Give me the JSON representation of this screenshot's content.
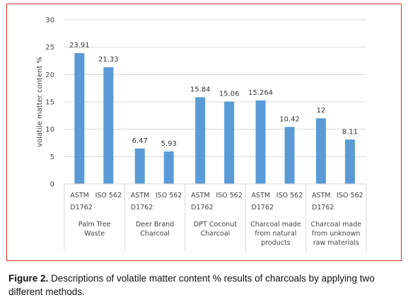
{
  "chart_data": {
    "type": "bar",
    "ylabel": "volatile matter content %",
    "ylim": [
      0,
      30
    ],
    "yticks": [
      "0",
      "5",
      "10",
      "15",
      "20",
      "25",
      "30"
    ],
    "grid": true,
    "bar_color": "#5b9bd5",
    "groups": [
      {
        "label": [
          "Palm Tree",
          "Waste"
        ],
        "bars": [
          {
            "method": [
              "ASTM",
              "D1762"
            ],
            "value": 23.91,
            "label": "23.91"
          },
          {
            "method": [
              "ISO 562"
            ],
            "value": 21.33,
            "label": "21.33"
          }
        ]
      },
      {
        "label": [
          "Deer Brand",
          "Charcoal"
        ],
        "bars": [
          {
            "method": [
              "ASTM",
              "D1762"
            ],
            "value": 6.47,
            "label": "6.47"
          },
          {
            "method": [
              "ISO 562"
            ],
            "value": 5.93,
            "label": "5.93"
          }
        ]
      },
      {
        "label": [
          "DPT Coconut",
          "Charcoal"
        ],
        "bars": [
          {
            "method": [
              "ASTM",
              "D1762"
            ],
            "value": 15.84,
            "label": "15.84"
          },
          {
            "method": [
              "ISO 562"
            ],
            "value": 15.06,
            "label": "15.06"
          }
        ]
      },
      {
        "label": [
          "Charcoal made",
          "from natural",
          "products"
        ],
        "bars": [
          {
            "method": [
              "ASTM",
              "D1762"
            ],
            "value": 15.264,
            "label": "15.264"
          },
          {
            "method": [
              "ISO 562"
            ],
            "value": 10.42,
            "label": "10.42"
          }
        ]
      },
      {
        "label": [
          "Charcoal made",
          "from unknown",
          "raw materials"
        ],
        "bars": [
          {
            "method": [
              "ASTM",
              "D1762"
            ],
            "value": 12,
            "label": "12"
          },
          {
            "method": [
              "ISO 562"
            ],
            "value": 8.11,
            "label": "8.11"
          }
        ]
      }
    ]
  },
  "caption": {
    "figure_label": "Figure 2.",
    "text": " Descriptions of volatile matter content % results of charcoals by applying two different methods."
  },
  "colors": {
    "frame_border": "#e8302a",
    "gridline": "#d9d9d9",
    "bar": "#5b9bd5"
  }
}
